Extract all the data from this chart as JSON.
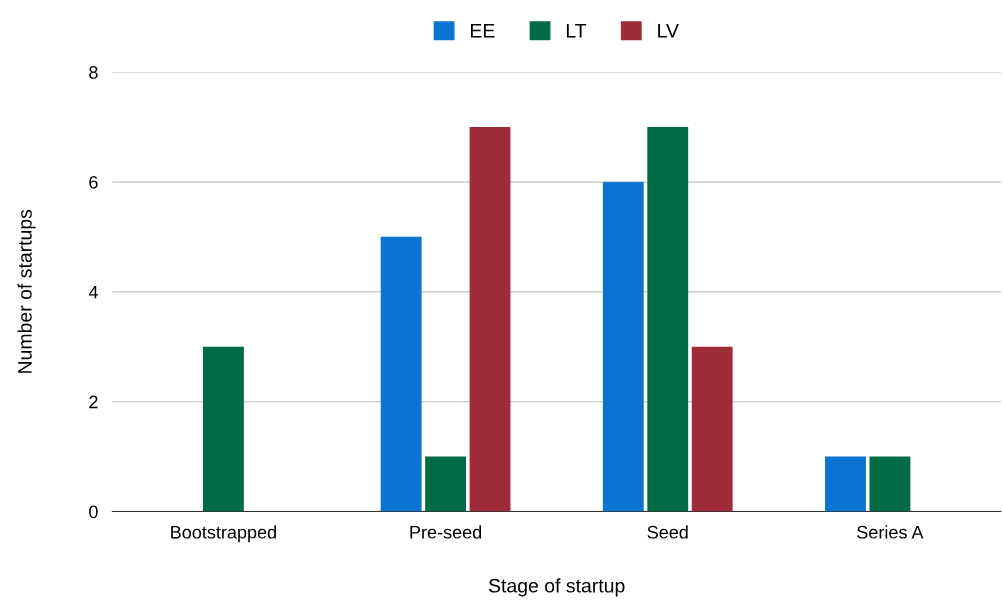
{
  "chart_data": {
    "type": "bar",
    "xlabel": "Stage of startup",
    "ylabel": "Number of startups",
    "categories": [
      "Bootstrapped",
      "Pre-seed",
      "Seed",
      "Series A"
    ],
    "series": [
      {
        "name": "EE",
        "color": "#0b74d1",
        "values": [
          0,
          5,
          6,
          1
        ]
      },
      {
        "name": "LT",
        "color": "#016b46",
        "values": [
          3,
          1,
          7,
          1
        ]
      },
      {
        "name": "LV",
        "color": "#a02b39",
        "values": [
          0,
          7,
          3,
          0
        ]
      }
    ],
    "ylim": [
      0,
      8
    ],
    "yticks": [
      0,
      2,
      4,
      6,
      8
    ],
    "grid": "y",
    "legend": "top"
  }
}
